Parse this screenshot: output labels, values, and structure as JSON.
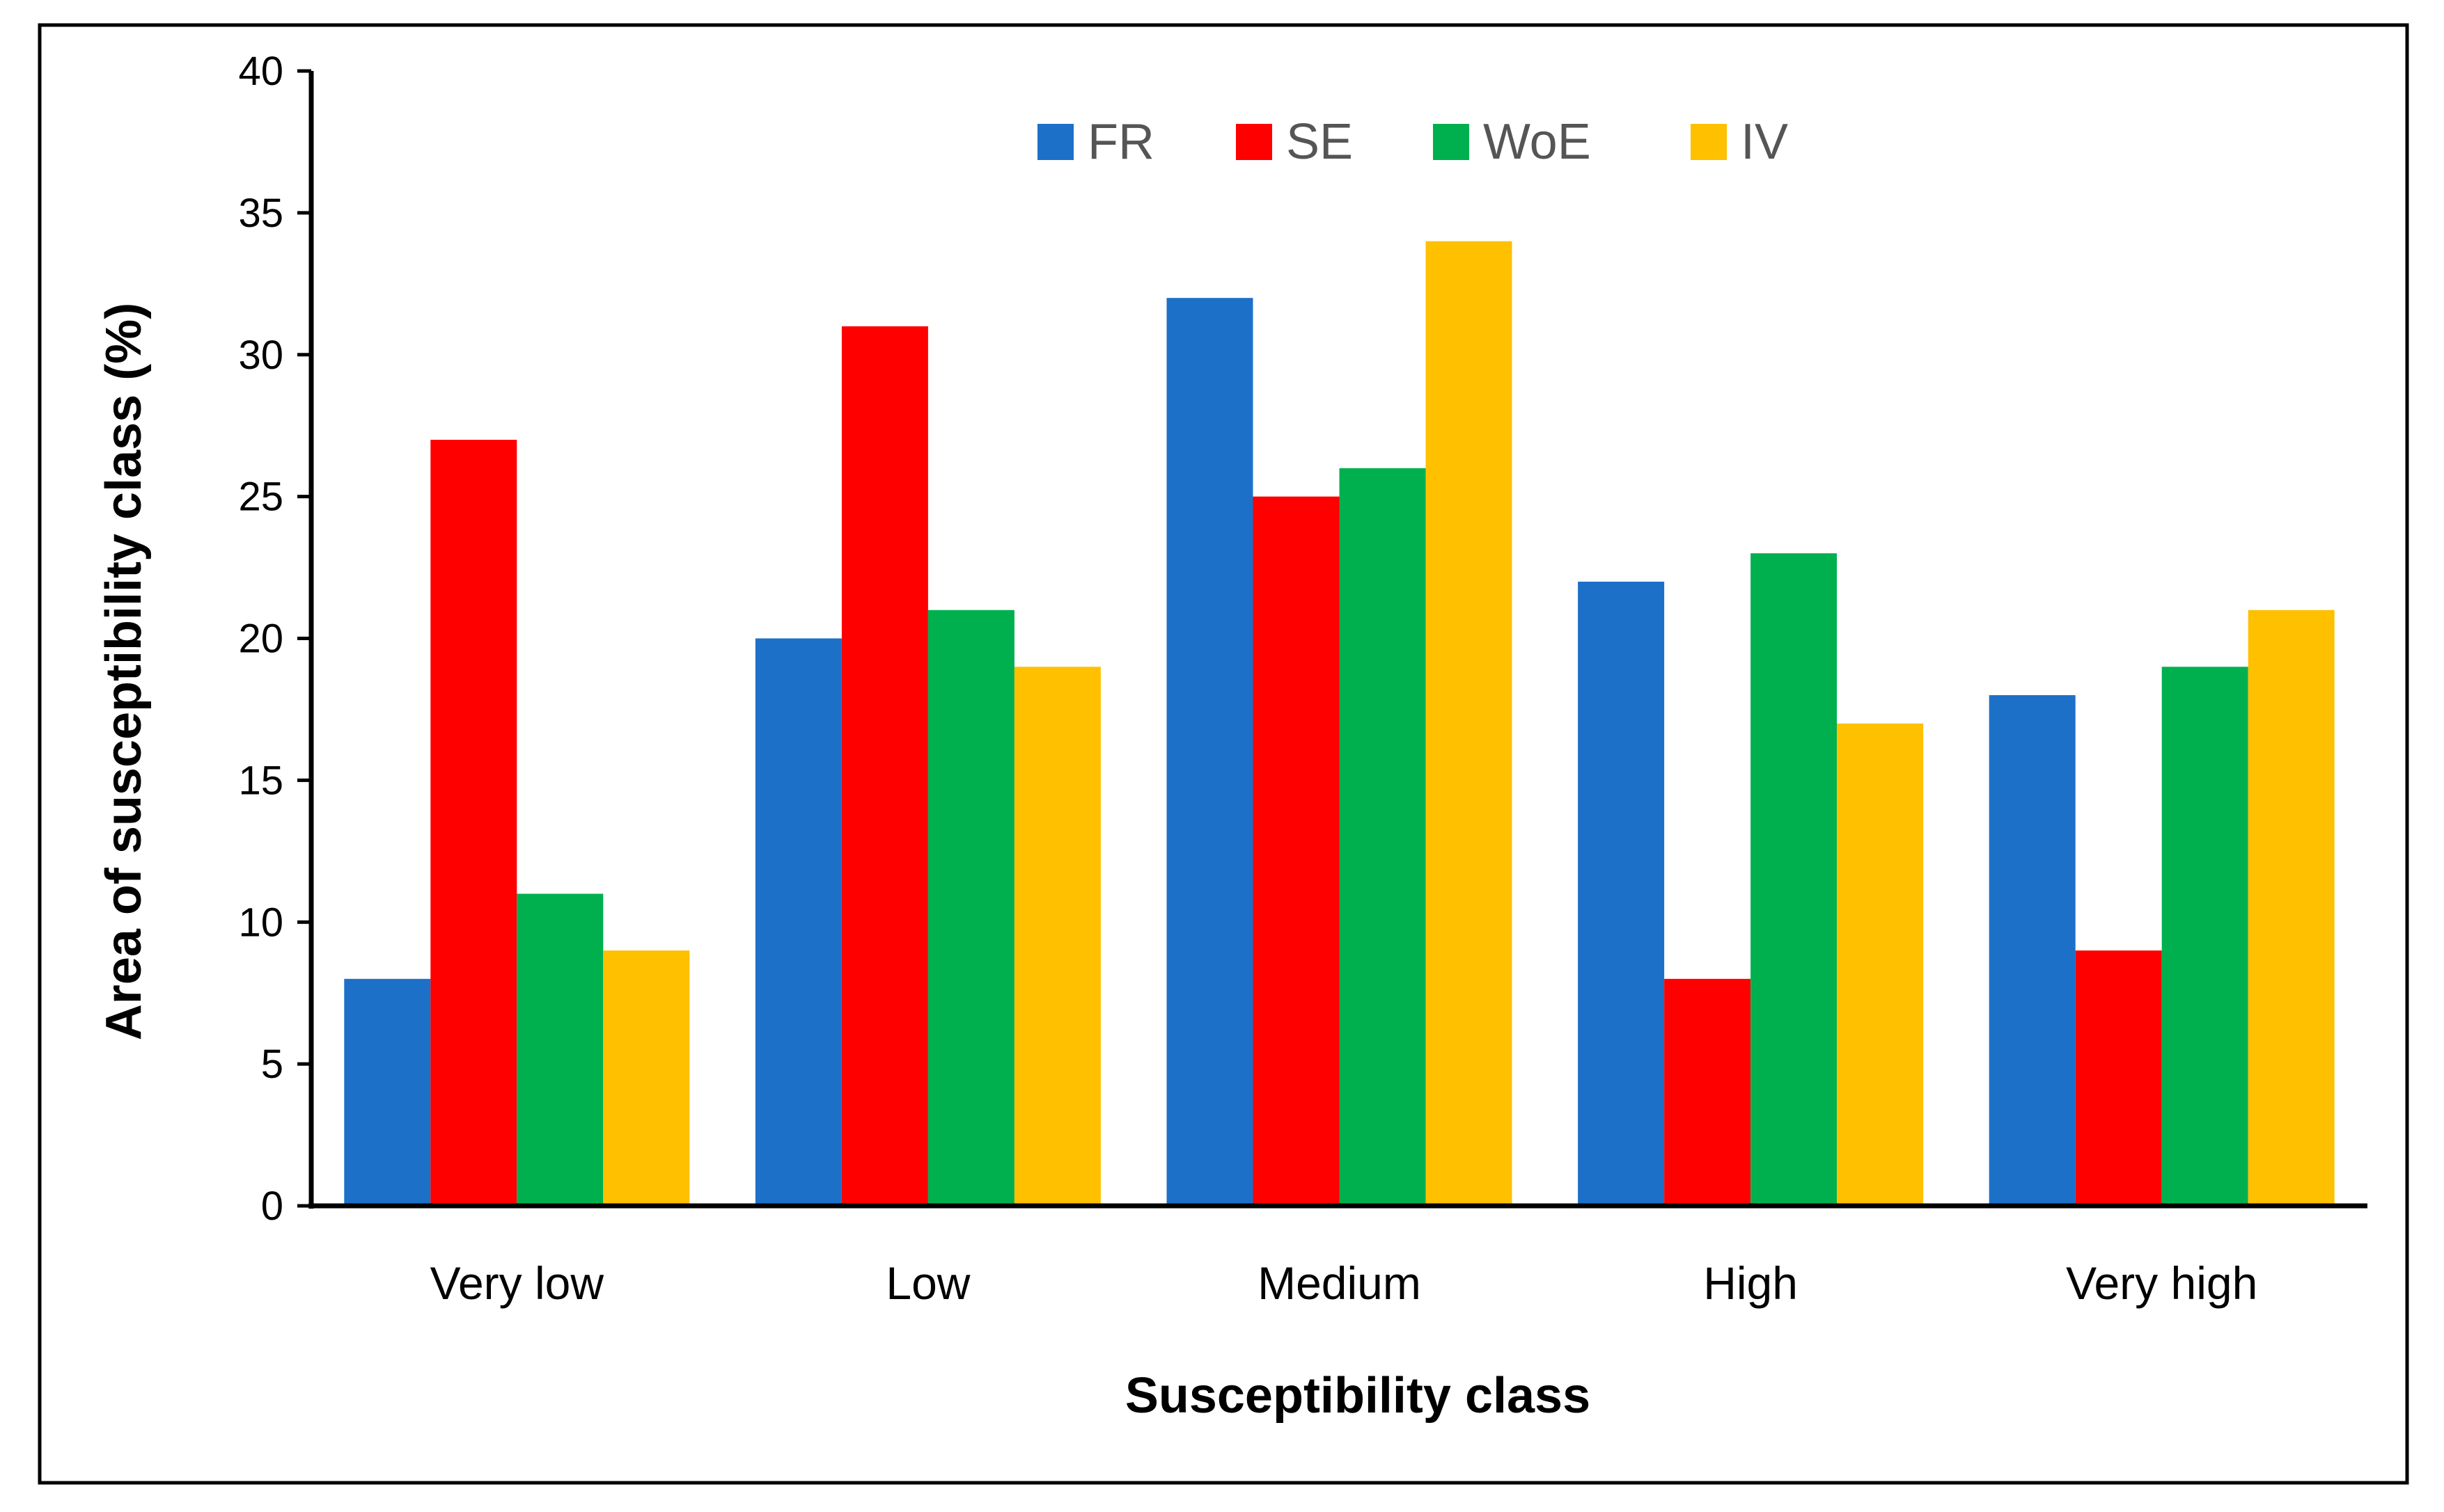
{
  "chart_data": {
    "type": "bar",
    "title": "",
    "xlabel": "Susceptibility class",
    "ylabel": "Area of susceptibility class (%)",
    "ylim": [
      0,
      40
    ],
    "yticks": [
      0,
      5,
      10,
      15,
      20,
      25,
      30,
      35,
      40
    ],
    "grid": false,
    "legend_position": "top-center",
    "categories": [
      "Very low",
      "Low",
      "Medium",
      "High",
      "Very high"
    ],
    "series": [
      {
        "name": "FR",
        "color": "#1C70C8",
        "values": [
          8,
          20,
          32,
          22,
          18
        ]
      },
      {
        "name": "SE",
        "color": "#FF0000",
        "values": [
          27,
          31,
          25,
          8,
          9
        ]
      },
      {
        "name": "WoE",
        "color": "#00B04F",
        "values": [
          11,
          21,
          26,
          23,
          19
        ]
      },
      {
        "name": "IV",
        "color": "#FFC000",
        "values": [
          9,
          19,
          34,
          17,
          21
        ]
      }
    ]
  }
}
